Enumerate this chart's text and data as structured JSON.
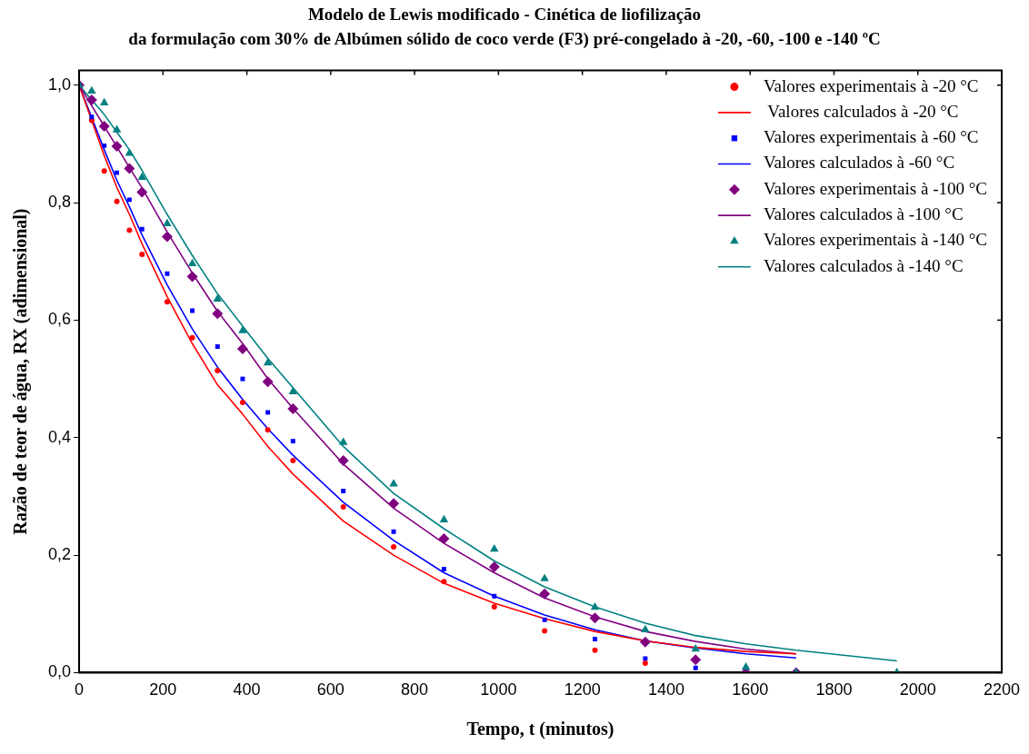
{
  "chart_data": {
    "type": "scatter",
    "title": "Modelo de Lewis modificado - Cinética de liofilização",
    "subtitle": "da formulação com 30% de Albúmen sólido de coco verde (F3) pré-congelado à -20, -60, -100 e -140 ºC",
    "xlabel": "Tempo, t (minutos)",
    "ylabel": "Razão de teor de água, RX (adimensional)",
    "x": [
      0,
      30,
      60,
      90,
      120,
      150,
      210,
      270,
      330,
      390,
      450,
      510,
      630,
      750,
      870,
      990,
      1110,
      1230,
      1350,
      1470,
      1590,
      1710
    ],
    "xlim": [
      0,
      2200
    ],
    "xticks": [
      0,
      200,
      400,
      600,
      800,
      1000,
      1200,
      1400,
      1600,
      1800,
      2000,
      2200
    ],
    "ylim": [
      0,
      1.025
    ],
    "yticks": [
      {
        "value": 0,
        "label": "0,0"
      },
      {
        "value": 0.2,
        "label": "0,2"
      },
      {
        "value": 0.4,
        "label": "0,4"
      },
      {
        "value": 0.6,
        "label": "0,6"
      },
      {
        "value": 0.8,
        "label": "0,8"
      },
      {
        "value": 1,
        "label": "1,0"
      }
    ],
    "grid": false,
    "legend": "top right",
    "series": [
      {
        "name": "Valores experimentais à -20 °C",
        "type": "scatter",
        "marker": "circle",
        "color": "#ff0000",
        "values": [
          null,
          0.94,
          0.854,
          0.802,
          0.753,
          0.712,
          0.631,
          0.57,
          0.514,
          0.46,
          0.413,
          0.361,
          0.282,
          0.214,
          0.155,
          0.112,
          0.071,
          0.038,
          0.016,
          null,
          null,
          null
        ]
      },
      {
        "name": " Valores calculados à -20 °C",
        "type": "line",
        "marker": "none",
        "color": "#ff0000",
        "values": [
          1,
          0.94,
          0.88,
          0.826,
          0.78,
          0.73,
          0.64,
          0.56,
          0.49,
          0.44,
          0.385,
          0.338,
          0.258,
          0.2,
          0.152,
          0.118,
          0.092,
          0.07,
          0.054,
          0.043,
          0.036,
          0.032
        ]
      },
      {
        "name": "Valores experimentais à -60 °C",
        "type": "scatter",
        "marker": "square",
        "color": "#0000ff",
        "values": [
          null,
          0.946,
          0.897,
          0.851,
          0.805,
          0.755,
          0.679,
          0.616,
          0.555,
          0.5,
          0.443,
          0.394,
          0.309,
          0.24,
          0.176,
          0.13,
          0.09,
          0.057,
          0.024,
          0.008,
          null,
          null
        ]
      },
      {
        "name": "Valores calculados à -60 °C",
        "type": "line",
        "marker": "none",
        "color": "#0000ff",
        "values": [
          1,
          0.945,
          0.89,
          0.838,
          0.793,
          0.745,
          0.66,
          0.585,
          0.52,
          0.465,
          0.415,
          0.37,
          0.29,
          0.225,
          0.17,
          0.13,
          0.098,
          0.073,
          0.054,
          0.042,
          0.032,
          0.025
        ]
      },
      {
        "name": "Valores experimentais à -100 °C",
        "type": "scatter",
        "marker": "diamond",
        "color": "#800080",
        "values": [
          1,
          0.975,
          0.93,
          0.896,
          0.858,
          0.818,
          0.742,
          0.674,
          0.611,
          0.551,
          0.495,
          0.449,
          0.361,
          0.288,
          0.228,
          0.18,
          0.134,
          0.093,
          0.052,
          0.022,
          0,
          0
        ]
      },
      {
        "name": "Valores calculados à -100 °C",
        "type": "line",
        "marker": "none",
        "color": "#800080",
        "values": [
          1,
          0.965,
          0.93,
          0.895,
          0.86,
          0.825,
          0.75,
          0.68,
          0.615,
          0.56,
          0.5,
          0.45,
          0.355,
          0.28,
          0.22,
          0.17,
          0.127,
          0.095,
          0.07,
          0.053,
          0.04,
          0.032
        ]
      },
      {
        "name": "Valores experimentais à -140 °C",
        "type": "scatter",
        "marker": "triangle",
        "color": "#008080",
        "x": [
          0,
          30,
          60,
          90,
          120,
          150,
          210,
          270,
          330,
          390,
          450,
          510,
          630,
          750,
          870,
          990,
          1110,
          1230,
          1350,
          1470,
          1590,
          1710,
          1950
        ],
        "values": [
          1,
          0.99,
          0.97,
          0.924,
          0.884,
          0.843,
          0.764,
          0.696,
          0.636,
          0.582,
          0.527,
          0.478,
          0.392,
          0.321,
          0.26,
          0.21,
          0.16,
          0.111,
          0.073,
          0.04,
          0.009,
          0,
          0
        ]
      },
      {
        "name": "Valores calculados à -140 °C",
        "type": "line",
        "marker": "none",
        "color": "#008080",
        "x": [
          0,
          30,
          60,
          90,
          120,
          150,
          210,
          270,
          330,
          390,
          450,
          510,
          630,
          750,
          870,
          990,
          1110,
          1230,
          1350,
          1470,
          1590,
          1710,
          1950
        ],
        "values": [
          1,
          0.975,
          0.95,
          0.92,
          0.89,
          0.855,
          0.78,
          0.71,
          0.645,
          0.59,
          0.535,
          0.485,
          0.385,
          0.305,
          0.245,
          0.19,
          0.146,
          0.112,
          0.084,
          0.063,
          0.049,
          0.038,
          0.02
        ]
      }
    ]
  }
}
